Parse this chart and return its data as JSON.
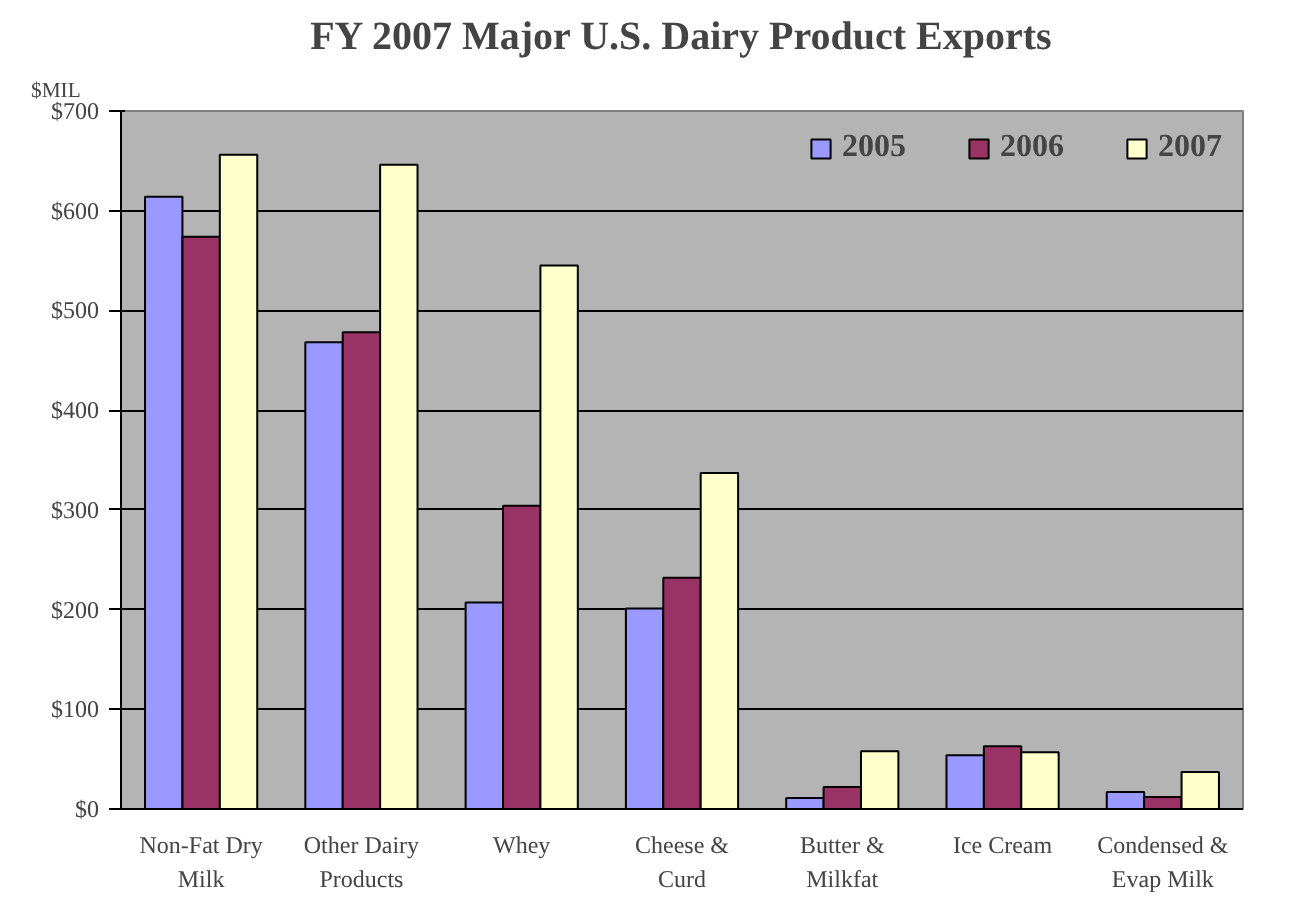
{
  "chart_data": {
    "type": "bar",
    "title": "FY 2007 Major U.S. Dairy Product Exports",
    "ylabel": "$MIL",
    "categories": [
      "Non-Fat Dry Milk",
      "Other Dairy Products",
      "Whey",
      "Cheese & Curd",
      "Butter & Milkfat",
      "Ice Cream",
      "Condensed & Evap Milk"
    ],
    "series": [
      {
        "name": "2005",
        "color": "#9999ff",
        "values": [
          614,
          468,
          207,
          201,
          11,
          54,
          17
        ]
      },
      {
        "name": "2006",
        "color": "#993366",
        "values": [
          574,
          478,
          304,
          232,
          22,
          63,
          12
        ]
      },
      {
        "name": "2007",
        "color": "#ffffcc",
        "values": [
          656,
          646,
          545,
          337,
          58,
          57,
          37
        ]
      }
    ],
    "ylim": [
      0,
      700
    ],
    "yticks": [
      {
        "value": 0,
        "label": "$0"
      },
      {
        "value": 100,
        "label": "$100"
      },
      {
        "value": 200,
        "label": "$200"
      },
      {
        "value": 300,
        "label": "$300"
      },
      {
        "value": 400,
        "label": "$400"
      },
      {
        "value": 500,
        "label": "$500"
      },
      {
        "value": 600,
        "label": "$600"
      },
      {
        "value": 700,
        "label": "$700"
      }
    ],
    "grid": "y",
    "legend": "top right"
  }
}
